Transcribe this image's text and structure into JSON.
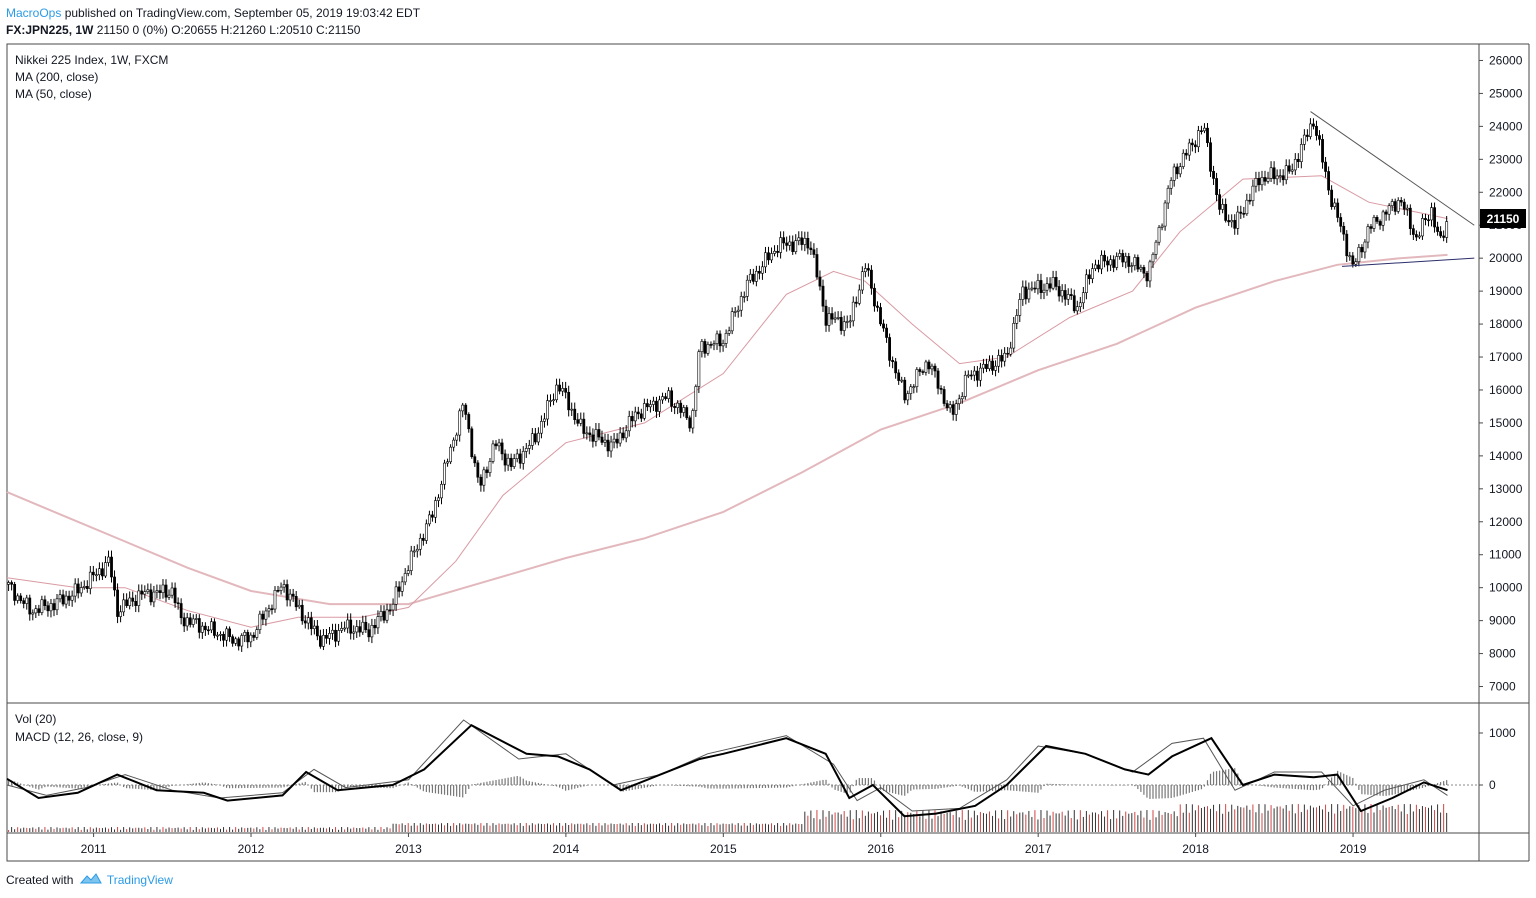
{
  "header": {
    "author": "MacroOps",
    "published": "published on TradingView.com, September 05, 2019 19:03:42 EDT",
    "symbol": "FX:JPN225, 1W",
    "quote": "21150 0 (0%) O:20655 H:21260 L:20510 C:21150"
  },
  "footer": {
    "created": "Created with",
    "brand": "TradingView"
  },
  "chart_data": [
    {
      "type": "candlestick",
      "title": "Nikkei 225 Index, 1W, FXCM",
      "legend": [
        "MA (200, close)",
        "MA (50, close)"
      ],
      "last_price_label": "21150",
      "ylim": [
        6500,
        26500
      ],
      "y_ticks": [
        7000,
        8000,
        9000,
        10000,
        11000,
        12000,
        13000,
        14000,
        15000,
        16000,
        17000,
        18000,
        19000,
        20000,
        21000,
        22000,
        23000,
        24000,
        25000,
        26000
      ],
      "x_ticks": [
        "2011",
        "2012",
        "2013",
        "2014",
        "2015",
        "2016",
        "2017",
        "2018",
        "2019"
      ],
      "xlim": [
        2010.45,
        2019.8
      ],
      "price_path": [
        [
          2010.45,
          10100
        ],
        [
          2010.6,
          9300
        ],
        [
          2010.75,
          9500
        ],
        [
          2010.9,
          9900
        ],
        [
          2011.1,
          10800
        ],
        [
          2011.15,
          9300
        ],
        [
          2011.3,
          9800
        ],
        [
          2011.5,
          9900
        ],
        [
          2011.55,
          9100
        ],
        [
          2011.75,
          8700
        ],
        [
          2011.9,
          8400
        ],
        [
          2012.0,
          8500
        ],
        [
          2012.2,
          10100
        ],
        [
          2012.35,
          9000
        ],
        [
          2012.45,
          8400
        ],
        [
          2012.6,
          8800
        ],
        [
          2012.75,
          8700
        ],
        [
          2012.9,
          9500
        ],
        [
          2013.0,
          10700
        ],
        [
          2013.15,
          12200
        ],
        [
          2013.35,
          15600
        ],
        [
          2013.45,
          13000
        ],
        [
          2013.55,
          14400
        ],
        [
          2013.65,
          13700
        ],
        [
          2013.8,
          14500
        ],
        [
          2013.95,
          16200
        ],
        [
          2014.1,
          14800
        ],
        [
          2014.3,
          14300
        ],
        [
          2014.45,
          15300
        ],
        [
          2014.65,
          15800
        ],
        [
          2014.8,
          15000
        ],
        [
          2014.85,
          17300
        ],
        [
          2015.0,
          17500
        ],
        [
          2015.15,
          19200
        ],
        [
          2015.35,
          20400
        ],
        [
          2015.55,
          20500
        ],
        [
          2015.65,
          18200
        ],
        [
          2015.8,
          18000
        ],
        [
          2015.9,
          19800
        ],
        [
          2016.05,
          17200
        ],
        [
          2016.15,
          15800
        ],
        [
          2016.3,
          16900
        ],
        [
          2016.45,
          15200
        ],
        [
          2016.55,
          16400
        ],
        [
          2016.8,
          17000
        ],
        [
          2016.9,
          19000
        ],
        [
          2017.1,
          19200
        ],
        [
          2017.25,
          18500
        ],
        [
          2017.35,
          19800
        ],
        [
          2017.55,
          20000
        ],
        [
          2017.7,
          19500
        ],
        [
          2017.85,
          22500
        ],
        [
          2018.05,
          24000
        ],
        [
          2018.15,
          21500
        ],
        [
          2018.25,
          21000
        ],
        [
          2018.4,
          22400
        ],
        [
          2018.6,
          22600
        ],
        [
          2018.75,
          24200
        ],
        [
          2018.85,
          22000
        ],
        [
          2018.95,
          20500
        ],
        [
          2019.0,
          19700
        ],
        [
          2019.1,
          20900
        ],
        [
          2019.3,
          21800
        ],
        [
          2019.4,
          20600
        ],
        [
          2019.5,
          21500
        ],
        [
          2019.55,
          20400
        ],
        [
          2019.6,
          21150
        ]
      ],
      "ma50": [
        [
          2010.45,
          10300
        ],
        [
          2010.9,
          10000
        ],
        [
          2011.2,
          10000
        ],
        [
          2011.6,
          9300
        ],
        [
          2012.0,
          8800
        ],
        [
          2012.3,
          9100
        ],
        [
          2012.7,
          9100
        ],
        [
          2013.0,
          9400
        ],
        [
          2013.3,
          10800
        ],
        [
          2013.6,
          12800
        ],
        [
          2014.0,
          14400
        ],
        [
          2014.5,
          15000
        ],
        [
          2015.0,
          16500
        ],
        [
          2015.4,
          18900
        ],
        [
          2015.7,
          19600
        ],
        [
          2015.9,
          19300
        ],
        [
          2016.2,
          18000
        ],
        [
          2016.5,
          16800
        ],
        [
          2016.8,
          17000
        ],
        [
          2017.2,
          18200
        ],
        [
          2017.6,
          19000
        ],
        [
          2017.9,
          20800
        ],
        [
          2018.3,
          22400
        ],
        [
          2018.8,
          22500
        ],
        [
          2019.1,
          21700
        ],
        [
          2019.5,
          21300
        ],
        [
          2019.6,
          21200
        ]
      ],
      "ma200": [
        [
          2010.45,
          12900
        ],
        [
          2010.8,
          12200
        ],
        [
          2011.2,
          11400
        ],
        [
          2011.6,
          10600
        ],
        [
          2012.0,
          9900
        ],
        [
          2012.5,
          9500
        ],
        [
          2013.0,
          9500
        ],
        [
          2013.5,
          10200
        ],
        [
          2014.0,
          10900
        ],
        [
          2014.5,
          11500
        ],
        [
          2015.0,
          12300
        ],
        [
          2015.5,
          13500
        ],
        [
          2016.0,
          14800
        ],
        [
          2016.5,
          15600
        ],
        [
          2017.0,
          16600
        ],
        [
          2017.5,
          17400
        ],
        [
          2018.0,
          18500
        ],
        [
          2018.5,
          19300
        ],
        [
          2018.9,
          19800
        ],
        [
          2019.3,
          20000
        ],
        [
          2019.6,
          20100
        ]
      ],
      "trendlines": [
        {
          "from": [
            2018.73,
            24450
          ],
          "to": [
            2019.77,
            21000
          ]
        },
        {
          "from": [
            2018.93,
            19750
          ],
          "to": [
            2019.77,
            20000
          ]
        }
      ]
    },
    {
      "type": "line",
      "title": "Vol (20)",
      "subtitle": "MACD (12, 26, close, 9)",
      "ylim": [
        -1000,
        1300
      ],
      "y_ticks": [
        0,
        1000
      ],
      "macd": [
        [
          2010.45,
          120
        ],
        [
          2010.65,
          -250
        ],
        [
          2010.9,
          -150
        ],
        [
          2011.15,
          200
        ],
        [
          2011.4,
          -100
        ],
        [
          2011.7,
          -150
        ],
        [
          2011.85,
          -300
        ],
        [
          2012.2,
          -200
        ],
        [
          2012.35,
          250
        ],
        [
          2012.55,
          -100
        ],
        [
          2012.9,
          0
        ],
        [
          2013.1,
          300
        ],
        [
          2013.4,
          1150
        ],
        [
          2013.75,
          600
        ],
        [
          2013.95,
          550
        ],
        [
          2014.15,
          300
        ],
        [
          2014.35,
          -100
        ],
        [
          2014.6,
          200
        ],
        [
          2014.85,
          500
        ],
        [
          2015.0,
          600
        ],
        [
          2015.4,
          900
        ],
        [
          2015.65,
          600
        ],
        [
          2015.8,
          -250
        ],
        [
          2015.95,
          0
        ],
        [
          2016.15,
          -600
        ],
        [
          2016.35,
          -550
        ],
        [
          2016.6,
          -400
        ],
        [
          2016.8,
          0
        ],
        [
          2017.05,
          750
        ],
        [
          2017.3,
          600
        ],
        [
          2017.55,
          300
        ],
        [
          2017.7,
          200
        ],
        [
          2017.85,
          550
        ],
        [
          2018.1,
          900
        ],
        [
          2018.3,
          0
        ],
        [
          2018.5,
          200
        ],
        [
          2018.75,
          150
        ],
        [
          2018.9,
          200
        ],
        [
          2019.05,
          -500
        ],
        [
          2019.25,
          -250
        ],
        [
          2019.45,
          50
        ],
        [
          2019.6,
          -100
        ]
      ],
      "signal": [
        [
          2010.45,
          0
        ],
        [
          2010.7,
          -200
        ],
        [
          2010.95,
          -50
        ],
        [
          2011.2,
          200
        ],
        [
          2011.5,
          -100
        ],
        [
          2011.8,
          -250
        ],
        [
          2012.2,
          -150
        ],
        [
          2012.4,
          300
        ],
        [
          2012.6,
          -50
        ],
        [
          2013.0,
          100
        ],
        [
          2013.35,
          1250
        ],
        [
          2013.7,
          500
        ],
        [
          2014.0,
          600
        ],
        [
          2014.3,
          0
        ],
        [
          2014.6,
          200
        ],
        [
          2014.9,
          600
        ],
        [
          2015.4,
          950
        ],
        [
          2015.7,
          400
        ],
        [
          2015.85,
          -300
        ],
        [
          2016.0,
          -50
        ],
        [
          2016.2,
          -500
        ],
        [
          2016.5,
          -450
        ],
        [
          2016.8,
          100
        ],
        [
          2017.0,
          750
        ],
        [
          2017.3,
          600
        ],
        [
          2017.6,
          250
        ],
        [
          2017.85,
          800
        ],
        [
          2018.05,
          900
        ],
        [
          2018.25,
          -100
        ],
        [
          2018.5,
          250
        ],
        [
          2018.8,
          250
        ],
        [
          2019.0,
          -400
        ],
        [
          2019.2,
          -100
        ],
        [
          2019.45,
          100
        ],
        [
          2019.6,
          -200
        ]
      ]
    }
  ]
}
